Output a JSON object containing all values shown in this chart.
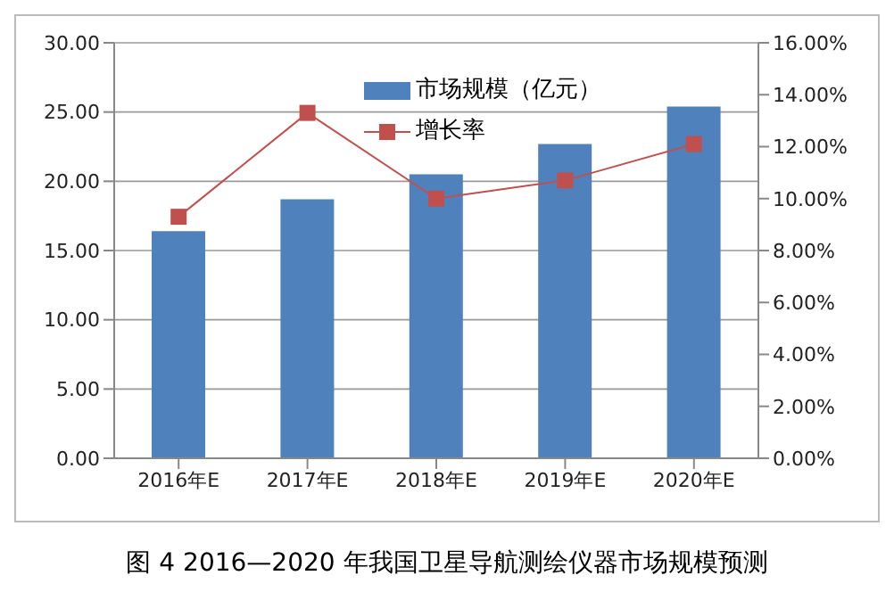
{
  "chart_data": {
    "type": "bar",
    "categories": [
      "2016年E",
      "2017年E",
      "2018年E",
      "2019年E",
      "2020年E"
    ],
    "series": [
      {
        "name": "市场规模（亿元）",
        "color": "#4f81bd",
        "values": [
          16.4,
          18.7,
          20.5,
          22.7,
          25.4
        ]
      },
      {
        "name": "增长率",
        "type": "line",
        "axis": "y2",
        "color": "#c0504d",
        "marker": "square",
        "values": [
          9.3,
          13.3,
          10.0,
          10.7,
          12.1
        ]
      }
    ],
    "ylim": [
      0,
      30
    ],
    "yticks": [
      {
        "value": 0,
        "label": "0.00"
      },
      {
        "value": 5,
        "label": "5.00"
      },
      {
        "value": 10,
        "label": "10.00"
      },
      {
        "value": 15,
        "label": "15.00"
      },
      {
        "value": 20,
        "label": "20.00"
      },
      {
        "value": 25,
        "label": "25.00"
      },
      {
        "value": 30,
        "label": "30.00"
      }
    ],
    "y2lim": [
      0,
      16
    ],
    "y2ticks": [
      {
        "value": 0,
        "label": "0.00%"
      },
      {
        "value": 2,
        "label": "2.00%"
      },
      {
        "value": 4,
        "label": "4.00%"
      },
      {
        "value": 6,
        "label": "6.00%"
      },
      {
        "value": 8,
        "label": "8.00%"
      },
      {
        "value": 10,
        "label": "10.00%"
      },
      {
        "value": 12,
        "label": "12.00%"
      },
      {
        "value": 14,
        "label": "14.00%"
      },
      {
        "value": 16,
        "label": "16.00%"
      }
    ],
    "grid": "y",
    "legend": "top",
    "annotations": [
      "图 4 2016—2020 年我国卫星导航测绘仪器市场规模预测"
    ]
  }
}
